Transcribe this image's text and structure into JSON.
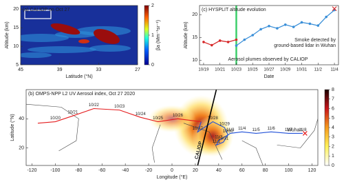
{
  "chart_data": [
    {
      "type": "heatmap",
      "title": "(a) CALIOP on Oct 27",
      "x_label": "Latitude (°N)",
      "y_label": "Altitude (km)",
      "xlim": [
        45,
        27
      ],
      "xticks": [
        45,
        39,
        33,
        27
      ],
      "ylim": [
        5,
        21
      ],
      "yticks": [
        5,
        10,
        15,
        20
      ],
      "colorbar": {
        "lim": [
          0,
          2
        ],
        "ticks": [
          0,
          1,
          2
        ],
        "label": "βa (Mm⁻¹sr⁻¹)"
      }
    },
    {
      "type": "line",
      "title": "(c) HYSPLIT altitude evolution",
      "x_label": "Date",
      "y_label": "Altitude (km)",
      "categories": [
        "10/19",
        null,
        "10/21",
        null,
        "10/23",
        null,
        "10/25",
        null,
        "10/27",
        null,
        "10/29",
        null,
        "10/31",
        null,
        "11/2",
        null,
        "11/4"
      ],
      "ylim": [
        9,
        22
      ],
      "yticks": [
        10,
        15,
        20
      ],
      "series": [
        {
          "color": "#d62728",
          "marker": "o",
          "values": [
            14,
            13.3,
            14.3,
            14,
            14.5,
            null,
            null,
            null,
            null,
            null,
            null,
            null,
            null,
            null,
            null,
            null,
            null
          ]
        },
        {
          "color": "#3a8fd8",
          "marker": "o",
          "values": [
            null,
            null,
            null,
            null,
            13.2,
            14.5,
            15.5,
            16.8,
            17.5,
            17,
            17.8,
            17.3,
            18.3,
            18,
            17.6,
            19.5,
            21
          ]
        },
        {
          "color": "#d62728",
          "marker": "x",
          "values": [
            null,
            null,
            null,
            null,
            null,
            null,
            null,
            null,
            null,
            null,
            null,
            null,
            null,
            null,
            null,
            null,
            21.3
          ]
        }
      ],
      "annotations": [
        {
          "text": [
            "Smoke detected by",
            "ground-based lidar in Wuhan"
          ],
          "color": "#e41a1c"
        },
        {
          "text": [
            "Aerosol plumes observed by CALIOP"
          ],
          "color": "#2ca02c",
          "x": "10/23"
        }
      ]
    },
    {
      "type": "map",
      "title": "(b) OMPS-NPP L2 UV Aerosol index, Oct 27 2020",
      "x_label": "Longitude (°E)",
      "y_label": "Latitude (°N)",
      "xlim": [
        -125,
        125
      ],
      "xticks": [
        -120,
        -100,
        -80,
        -60,
        -40,
        -20,
        0,
        20,
        40,
        60,
        80,
        100,
        120
      ],
      "ylim": [
        8,
        60
      ],
      "yticks": [
        20,
        40
      ],
      "colorbar": {
        "lim": [
          0,
          8
        ],
        "ticks": [
          0,
          1,
          2,
          3,
          4,
          5,
          6,
          7,
          8
        ]
      },
      "series": [
        {
          "color": "#e41a1c",
          "x": [
            -115,
            -100,
            -85,
            -67,
            -45,
            -27,
            -12,
            5,
            25
          ],
          "y": [
            37,
            38,
            42,
            47,
            46,
            41,
            38,
            40,
            38
          ],
          "point_labels": [
            null,
            "10/20",
            "10/21",
            "10/22",
            "10/23",
            "10/24",
            "10/25",
            "10/26",
            null
          ]
        },
        {
          "color": "#1f4fd8",
          "x": [
            25,
            22,
            35,
            45,
            48,
            44,
            38,
            40,
            50,
            60,
            72,
            85,
            100,
            112
          ],
          "y": [
            38,
            31,
            38,
            34,
            29,
            24,
            22,
            25,
            30,
            31,
            30,
            31,
            30,
            30
          ],
          "point_labels": [
            null,
            "10/27",
            "10/28",
            "10/29",
            "10/30",
            "10/31",
            "11/1",
            "11/2",
            "11/3",
            "11/4",
            "11/5",
            "11/6",
            "11/7",
            "11/8"
          ]
        },
        {
          "label": "CALIOP",
          "color": "#000000",
          "x": [
            22,
            38
          ],
          "y": [
            8,
            60
          ]
        },
        {
          "label": "Wuhan",
          "color": "#e41a1c",
          "marker": "x",
          "x": [
            114
          ],
          "y": [
            30
          ]
        }
      ]
    }
  ]
}
